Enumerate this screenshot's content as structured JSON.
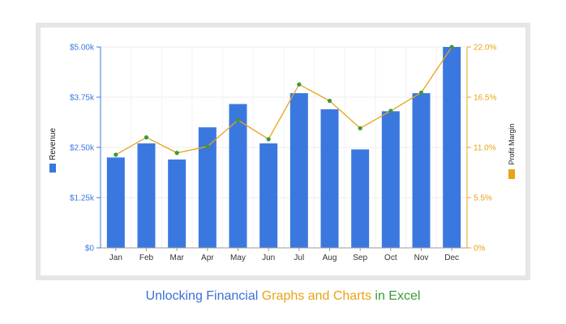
{
  "caption": {
    "part1": "Unlocking Financial ",
    "part2": "Graphs and Charts",
    "part3": " in Excel",
    "colors": [
      "#3b6fd6",
      "#e8a317",
      "#3a9a3a"
    ]
  },
  "chart_data": {
    "type": "bar",
    "categories": [
      "Jan",
      "Feb",
      "Mar",
      "Apr",
      "May",
      "Jun",
      "Jul",
      "Aug",
      "Sep",
      "Oct",
      "Nov",
      "Dec"
    ],
    "series": [
      {
        "name": "Revenue",
        "type": "bar",
        "axis": "left",
        "color": "#3a78e0",
        "values": [
          2250,
          2600,
          2200,
          3000,
          3580,
          2600,
          3850,
          3450,
          2450,
          3400,
          3850,
          5000
        ]
      },
      {
        "name": "Profit Margin",
        "type": "line",
        "axis": "right",
        "color": "#e8a317",
        "marker_color": "#3a9a3a",
        "values": [
          10.2,
          12.1,
          10.4,
          11.1,
          14.0,
          11.9,
          17.9,
          16.1,
          13.1,
          15.0,
          17.0,
          22.0
        ]
      }
    ],
    "y_left": {
      "label": "Revenue",
      "range": [
        0,
        5000
      ],
      "ticks": [
        0,
        1250,
        2500,
        3750,
        5000
      ],
      "tick_labels": [
        "$0",
        "$1.25k",
        "$2.50k",
        "$3.75k",
        "$5.00k"
      ],
      "color": "#3a78e0"
    },
    "y_right": {
      "label": "Profit Margin",
      "range": [
        0,
        22
      ],
      "ticks": [
        0,
        5.5,
        11,
        16.5,
        22
      ],
      "tick_labels": [
        "0%",
        "5.5%",
        "11.0%",
        "16.5%",
        "22.0%"
      ],
      "color": "#e8a317"
    },
    "grid": true,
    "legend": "axis-side markers"
  }
}
